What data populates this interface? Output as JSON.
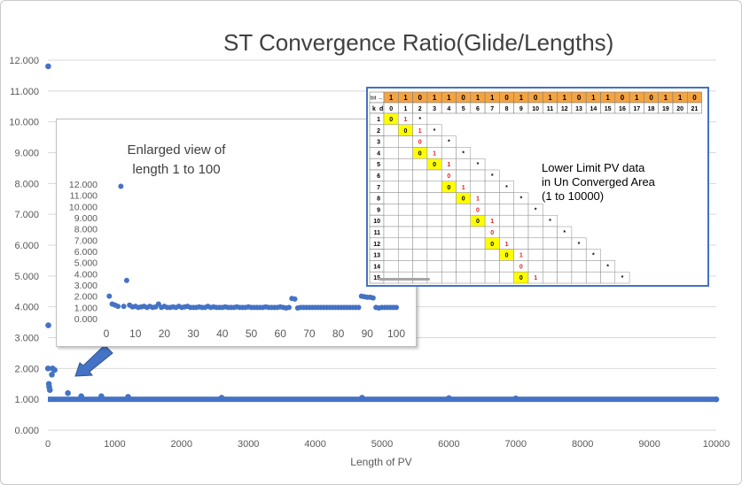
{
  "chart_data": [
    {
      "type": "scatter",
      "title": "ST Convergence Ratio(Glide/Lengths)",
      "xlabel": "Length of PV",
      "ylabel": "",
      "xlim": [
        0,
        10000
      ],
      "ylim": [
        0,
        12
      ],
      "x_ticks": [
        "0",
        "1000",
        "2000",
        "3000",
        "4000",
        "5000",
        "6000",
        "7000",
        "8000",
        "9000",
        "10000"
      ],
      "y_ticks": [
        "0.000",
        "1.000",
        "2.000",
        "3.000",
        "4.000",
        "5.000",
        "6.000",
        "7.000",
        "8.000",
        "9.000",
        "10.000",
        "11.000",
        "12.000"
      ],
      "grid": "horizontal",
      "color": "#4472c4",
      "points": [
        [
          5,
          11.8
        ],
        [
          7,
          3.4
        ],
        [
          2,
          2.0
        ],
        [
          70,
          2.0
        ],
        [
          100,
          1.95
        ],
        [
          60,
          1.8
        ],
        [
          15,
          1.5
        ],
        [
          20,
          1.4
        ],
        [
          30,
          1.3
        ],
        [
          300,
          1.2
        ],
        [
          500,
          1.1
        ],
        [
          800,
          1.1
        ],
        [
          1200,
          1.08
        ],
        [
          2600,
          1.05
        ],
        [
          4700,
          1.05
        ],
        [
          6000,
          1.04
        ],
        [
          7000,
          1.03
        ],
        [
          10000,
          1.0
        ]
      ],
      "baseline": {
        "from": 0,
        "to": 10000,
        "value": 1.0
      }
    },
    {
      "type": "scatter",
      "caption": "Enlarged view of\nlength 1 to 100",
      "xlim": [
        0,
        100
      ],
      "ylim": [
        0,
        12
      ],
      "x_ticks": [
        "0",
        "10",
        "20",
        "30",
        "40",
        "50",
        "60",
        "70",
        "80",
        "90",
        "100"
      ],
      "y_ticks": [
        "0.000",
        "1.000",
        "2.000",
        "3.000",
        "4.000",
        "5.000",
        "6.000",
        "7.000",
        "8.000",
        "9.000",
        "10.000",
        "11.000",
        "12.000"
      ],
      "color": "#4472c4",
      "x": [
        1,
        2,
        3,
        4,
        5,
        6,
        7,
        8,
        9,
        10,
        11,
        12,
        13,
        14,
        15,
        16,
        17,
        18,
        19,
        20,
        21,
        22,
        23,
        24,
        25,
        26,
        27,
        28,
        29,
        30,
        31,
        32,
        33,
        34,
        35,
        36,
        37,
        38,
        39,
        40,
        41,
        42,
        43,
        44,
        45,
        46,
        47,
        48,
        49,
        50,
        51,
        52,
        53,
        54,
        55,
        56,
        57,
        58,
        59,
        60,
        61,
        62,
        63,
        64,
        65,
        66,
        67,
        68,
        69,
        70,
        71,
        72,
        73,
        74,
        75,
        76,
        77,
        78,
        79,
        80,
        81,
        82,
        83,
        84,
        85,
        86,
        87,
        88,
        89,
        90,
        91,
        92,
        93,
        94,
        95,
        96,
        97,
        98,
        99,
        100
      ],
      "y": [
        2.0,
        1.3,
        1.2,
        1.1,
        11.8,
        1.1,
        3.4,
        1.2,
        1.05,
        1.1,
        1.0,
        1.05,
        1.1,
        1.0,
        1.1,
        1.0,
        1.05,
        1.3,
        1.0,
        1.1,
        1.0,
        1.0,
        1.05,
        1.0,
        1.1,
        1.0,
        1.05,
        1.1,
        1.0,
        1.0,
        1.0,
        1.05,
        1.0,
        1.0,
        1.1,
        1.0,
        1.05,
        1.0,
        1.0,
        1.0,
        1.05,
        1.0,
        1.0,
        1.0,
        1.05,
        1.0,
        1.0,
        1.0,
        1.05,
        1.0,
        1.0,
        1.0,
        1.0,
        1.0,
        1.05,
        1.0,
        1.0,
        1.0,
        1.0,
        1.05,
        1.0,
        0.95,
        1.0,
        1.8,
        1.75,
        0.95,
        1.0,
        1.0,
        1.0,
        1.0,
        1.0,
        1.0,
        1.0,
        1.0,
        1.0,
        1.0,
        1.0,
        1.0,
        1.0,
        1.0,
        1.0,
        1.0,
        1.0,
        1.0,
        1.0,
        1.0,
        1.0,
        2.0,
        1.95,
        1.9,
        1.9,
        1.85,
        1.0,
        0.95,
        1.0,
        1.0,
        1.0,
        1.0,
        1.0,
        1.0
      ]
    },
    {
      "type": "table",
      "header_label": "bit →",
      "bits": [
        "1",
        "1",
        "0",
        "1",
        "1",
        "0",
        "1",
        "1",
        "0",
        "1",
        "0",
        "1",
        "1",
        "0",
        "1",
        "1",
        "0",
        "1",
        "0",
        "1",
        "1",
        "0"
      ],
      "k_label": "k",
      "d_label": "d",
      "columns": [
        "0",
        "1",
        "2",
        "3",
        "4",
        "5",
        "6",
        "7",
        "8",
        "9",
        "10",
        "11",
        "12",
        "13",
        "14",
        "15",
        "16",
        "17",
        "18",
        "19",
        "20",
        "21"
      ],
      "rows": [
        {
          "k": "1",
          "cells": [
            {
              "c": 0,
              "t": "0",
              "hl": true
            },
            {
              "c": 1,
              "t": "1",
              "red": true
            },
            {
              "c": 2,
              "t": "*"
            }
          ]
        },
        {
          "k": "2",
          "cells": [
            {
              "c": 1,
              "t": "0",
              "hl": true
            },
            {
              "c": 2,
              "t": "1",
              "red": true
            },
            {
              "c": 3,
              "t": "*"
            }
          ]
        },
        {
          "k": "3",
          "cells": [
            {
              "c": 2,
              "t": "0",
              "red": true
            },
            {
              "c": 4,
              "t": "*"
            }
          ]
        },
        {
          "k": "4",
          "cells": [
            {
              "c": 2,
              "t": "0",
              "hl": true
            },
            {
              "c": 3,
              "t": "1",
              "red": true
            },
            {
              "c": 5,
              "t": "*"
            }
          ]
        },
        {
          "k": "5",
          "cells": [
            {
              "c": 3,
              "t": "0",
              "hl": true
            },
            {
              "c": 4,
              "t": "1",
              "red": true
            },
            {
              "c": 6,
              "t": "*"
            }
          ]
        },
        {
          "k": "6",
          "cells": [
            {
              "c": 4,
              "t": "0",
              "red": true
            },
            {
              "c": 7,
              "t": "*"
            }
          ]
        },
        {
          "k": "7",
          "cells": [
            {
              "c": 4,
              "t": "0",
              "hl": true
            },
            {
              "c": 5,
              "t": "1",
              "red": true
            },
            {
              "c": 8,
              "t": "*"
            }
          ]
        },
        {
          "k": "8",
          "cells": [
            {
              "c": 5,
              "t": "0",
              "hl": true
            },
            {
              "c": 6,
              "t": "1",
              "red": true
            },
            {
              "c": 9,
              "t": "*"
            }
          ]
        },
        {
          "k": "9",
          "cells": [
            {
              "c": 6,
              "t": "0",
              "red": true
            },
            {
              "c": 10,
              "t": "*"
            }
          ]
        },
        {
          "k": "10",
          "cells": [
            {
              "c": 6,
              "t": "0",
              "hl": true
            },
            {
              "c": 7,
              "t": "1",
              "red": true
            },
            {
              "c": 11,
              "t": "*"
            }
          ]
        },
        {
          "k": "11",
          "cells": [
            {
              "c": 7,
              "t": "0",
              "red": true
            },
            {
              "c": 12,
              "t": "*"
            }
          ]
        },
        {
          "k": "12",
          "cells": [
            {
              "c": 7,
              "t": "0",
              "hl": true
            },
            {
              "c": 8,
              "t": "1",
              "red": true
            },
            {
              "c": 13,
              "t": "*"
            }
          ]
        },
        {
          "k": "13",
          "cells": [
            {
              "c": 8,
              "t": "0",
              "hl": true
            },
            {
              "c": 9,
              "t": "1",
              "red": true
            },
            {
              "c": 14,
              "t": "*"
            }
          ]
        },
        {
          "k": "14",
          "cells": [
            {
              "c": 9,
              "t": "0",
              "red": true
            },
            {
              "c": 15,
              "t": "*"
            }
          ]
        },
        {
          "k": "15",
          "cells": [
            {
              "c": 9,
              "t": "0",
              "hl": true
            },
            {
              "c": 10,
              "t": "1",
              "red": true
            },
            {
              "c": 16,
              "t": "*"
            }
          ]
        }
      ],
      "note": "Lower Limit PV data\nin Un Converged Area\n(1 to 10000)",
      "colors": {
        "orange": "#f4a441",
        "yellow": "#ffff00",
        "red": "#e02020"
      }
    }
  ]
}
